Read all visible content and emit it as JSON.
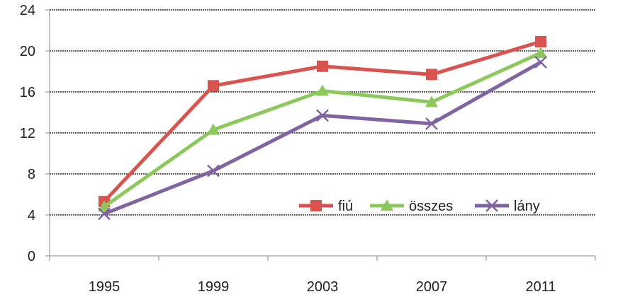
{
  "chart_data": {
    "type": "line",
    "categories": [
      "1995",
      "1999",
      "2003",
      "2007",
      "2011"
    ],
    "ylim": [
      0,
      24
    ],
    "yticks": [
      0,
      4,
      8,
      12,
      16,
      20,
      24
    ],
    "grid": true,
    "legend_position": "bottom-right",
    "series": [
      {
        "name": "fiú",
        "values": [
          5.3,
          16.6,
          18.5,
          17.7,
          20.9
        ],
        "color": "#d9534f",
        "marker": "square"
      },
      {
        "name": "összes",
        "values": [
          4.8,
          12.3,
          16.1,
          15.0,
          19.8
        ],
        "color": "#8cc85b",
        "marker": "triangle"
      },
      {
        "name": "lány",
        "values": [
          4.1,
          8.3,
          13.7,
          12.9,
          18.9
        ],
        "color": "#8064a2",
        "marker": "x"
      }
    ]
  }
}
